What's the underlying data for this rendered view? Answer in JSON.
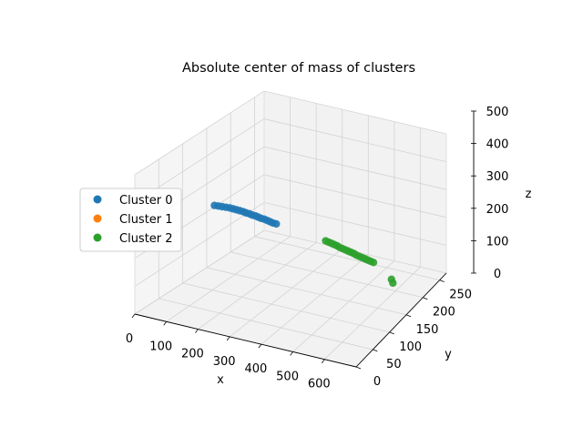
{
  "chart_data": {
    "type": "scatter",
    "title": "Absolute center of mass of clusters",
    "xlabel": "x",
    "ylabel": "y",
    "zlabel": "z",
    "xlim": [
      0,
      700
    ],
    "ylim": [
      0,
      270
    ],
    "zlim": [
      0,
      500
    ],
    "xticks": [
      "0",
      "100",
      "200",
      "300",
      "400",
      "500",
      "600"
    ],
    "yticks": [
      "0",
      "50",
      "100",
      "150",
      "200",
      "250"
    ],
    "zticks": [
      "0",
      "100",
      "200",
      "300",
      "400",
      "500"
    ],
    "grid": true,
    "legend_position": "center-left",
    "series": [
      {
        "name": "Cluster 0",
        "color": "#1f77b4",
        "points": [
          [
            60,
            130,
            260
          ],
          [
            70,
            132,
            258
          ],
          [
            80,
            134,
            256
          ],
          [
            90,
            136,
            254
          ],
          [
            100,
            138,
            252
          ],
          [
            110,
            139,
            250
          ],
          [
            120,
            140,
            248
          ],
          [
            130,
            141,
            246
          ],
          [
            140,
            142,
            244
          ],
          [
            150,
            142,
            242
          ],
          [
            160,
            143,
            240
          ],
          [
            170,
            143,
            238
          ],
          [
            180,
            144,
            236
          ],
          [
            190,
            144,
            234
          ],
          [
            200,
            144,
            232
          ],
          [
            210,
            145,
            230
          ],
          [
            220,
            145,
            228
          ],
          [
            230,
            145,
            226
          ],
          [
            240,
            145,
            224
          ],
          [
            250,
            146,
            222
          ]
        ]
      },
      {
        "name": "Cluster 1",
        "color": "#ff7f0e",
        "points": []
      },
      {
        "name": "Cluster 2",
        "color": "#2ca02c",
        "points": [
          [
            420,
            148,
            200
          ],
          [
            430,
            148,
            198
          ],
          [
            440,
            148,
            196
          ],
          [
            450,
            148,
            194
          ],
          [
            460,
            148,
            192
          ],
          [
            470,
            147,
            190
          ],
          [
            480,
            147,
            188
          ],
          [
            490,
            147,
            186
          ],
          [
            500,
            147,
            184
          ],
          [
            510,
            147,
            182
          ],
          [
            520,
            147,
            180
          ],
          [
            530,
            146,
            178
          ],
          [
            540,
            146,
            176
          ],
          [
            550,
            146,
            174
          ],
          [
            560,
            146,
            172
          ],
          [
            570,
            146,
            170
          ],
          [
            580,
            146,
            168
          ],
          [
            590,
            146,
            166
          ],
          [
            660,
            140,
            130
          ],
          [
            665,
            140,
            118
          ]
        ]
      }
    ]
  }
}
